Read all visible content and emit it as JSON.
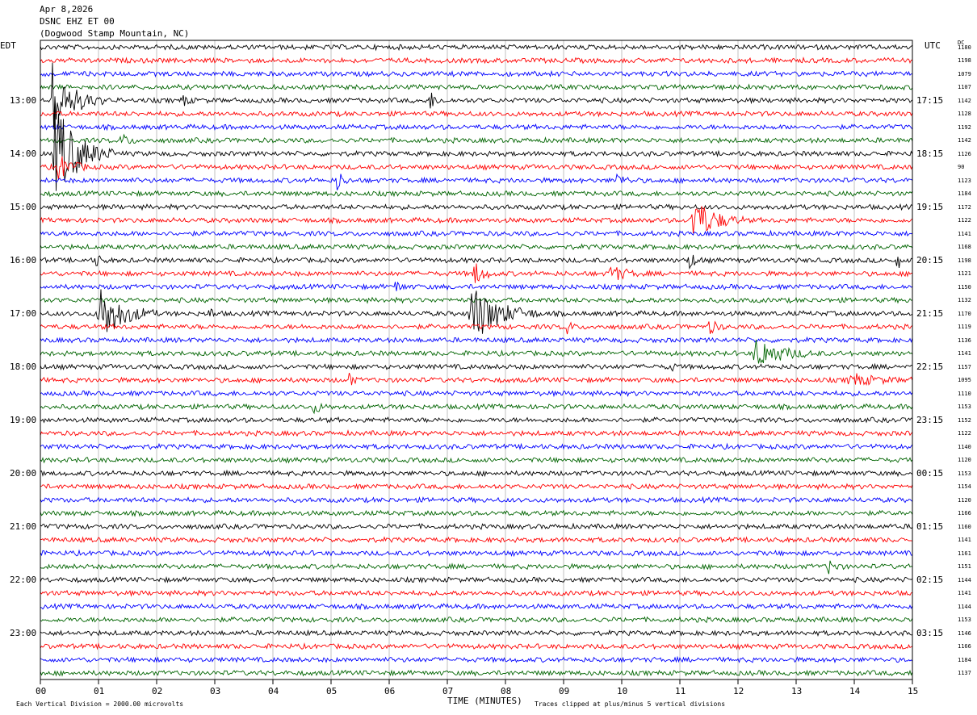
{
  "header": {
    "date": "Apr 8,2026",
    "station": "DSNC EHZ ET 00",
    "location": "(Dogwood Stamp Mountain, NC)"
  },
  "axes": {
    "left_label": "EDT",
    "right_label": "UTC",
    "dc_label": "DC",
    "xlabel": "TIME (MINUTES)"
  },
  "footer": {
    "left_note": "Each Vertical Division = 2000.00 microvolts",
    "right_note": "Traces clipped at plus/minus 5 vertical divisions"
  },
  "chart_data": {
    "type": "line",
    "title": "DSNC EHZ ET 00",
    "xlabel": "TIME (MINUTES)",
    "xlim": [
      0,
      15
    ],
    "x_tick_labels": [
      "00",
      "01",
      "02",
      "03",
      "04",
      "05",
      "06",
      "07",
      "08",
      "09",
      "10",
      "11",
      "12",
      "13",
      "14",
      "15"
    ],
    "left_time_labels": [
      "13:00",
      "14:00",
      "15:00",
      "16:00",
      "17:00",
      "18:00",
      "19:00",
      "20:00",
      "21:00",
      "22:00",
      "23:00"
    ],
    "right_time_labels": [
      "17:15",
      "18:15",
      "19:15",
      "20:15",
      "21:15",
      "22:15",
      "23:15",
      "00:15",
      "01:15",
      "02:15",
      "03:15"
    ],
    "first_labeled_trace_index": 4,
    "traces_per_hour": 4,
    "trace_colors": [
      "#000000",
      "#ff0000",
      "#0000ff",
      "#006400"
    ],
    "dc_offsets": [
      "1180",
      "1198",
      "1079",
      "1107",
      "1142",
      "1128",
      "1192",
      "1142",
      "1126",
      "90",
      "1123",
      "1184",
      "1172",
      "1122",
      "1141",
      "1168",
      "1198",
      "1121",
      "1150",
      "1132",
      "1170",
      "1119",
      "1136",
      "1141",
      "1157",
      "1095",
      "1110",
      "1153",
      "1152",
      "1122",
      "1140",
      "1120",
      "1153",
      "1154",
      "1120",
      "1166",
      "1160",
      "1141",
      "1161",
      "1151",
      "1144",
      "1141",
      "1144",
      "1153",
      "1146",
      "1166",
      "1184",
      "1137"
    ],
    "events": [
      {
        "trace": 4,
        "minute": 0.2,
        "amplitude": 2.8,
        "duration_min": 0.9
      },
      {
        "trace": 8,
        "minute": 0.25,
        "amplitude": 4.0,
        "duration_min": 1.0
      },
      {
        "trace": 9,
        "minute": 0.3,
        "amplitude": 1.0,
        "duration_min": 0.6
      },
      {
        "trace": 4,
        "minute": 2.45,
        "amplitude": 0.6,
        "duration_min": 0.2
      },
      {
        "trace": 4,
        "minute": 6.7,
        "amplitude": 0.7,
        "duration_min": 0.25
      },
      {
        "trace": 7,
        "minute": 1.4,
        "amplitude": 0.5,
        "duration_min": 0.3
      },
      {
        "trace": 10,
        "minute": 5.1,
        "amplitude": 0.8,
        "duration_min": 0.25
      },
      {
        "trace": 10,
        "minute": 9.9,
        "amplitude": 0.5,
        "duration_min": 0.4
      },
      {
        "trace": 13,
        "minute": 11.2,
        "amplitude": 2.0,
        "duration_min": 0.9
      },
      {
        "trace": 16,
        "minute": 0.95,
        "amplitude": 0.6,
        "duration_min": 0.2
      },
      {
        "trace": 16,
        "minute": 11.15,
        "amplitude": 0.8,
        "duration_min": 0.25
      },
      {
        "trace": 16,
        "minute": 14.75,
        "amplitude": 1.5,
        "duration_min": 0.05
      },
      {
        "trace": 17,
        "minute": 7.45,
        "amplitude": 1.0,
        "duration_min": 0.4
      },
      {
        "trace": 17,
        "minute": 9.8,
        "amplitude": 0.7,
        "duration_min": 0.6
      },
      {
        "trace": 18,
        "minute": 6.1,
        "amplitude": 0.4,
        "duration_min": 0.3
      },
      {
        "trace": 20,
        "minute": 1.0,
        "amplitude": 2.4,
        "duration_min": 1.0
      },
      {
        "trace": 20,
        "minute": 7.4,
        "amplitude": 2.4,
        "duration_min": 1.2
      },
      {
        "trace": 20,
        "minute": 2.9,
        "amplitude": 0.5,
        "duration_min": 0.2
      },
      {
        "trace": 21,
        "minute": 9.05,
        "amplitude": 0.6,
        "duration_min": 0.2
      },
      {
        "trace": 21,
        "minute": 11.5,
        "amplitude": 0.6,
        "duration_min": 0.3
      },
      {
        "trace": 23,
        "minute": 12.3,
        "amplitude": 1.2,
        "duration_min": 1.1
      },
      {
        "trace": 24,
        "minute": 10.8,
        "amplitude": 0.5,
        "duration_min": 0.2
      },
      {
        "trace": 25,
        "minute": 5.3,
        "amplitude": 0.8,
        "duration_min": 0.15
      },
      {
        "trace": 25,
        "minute": 13.9,
        "amplitude": 0.5,
        "duration_min": 1.1
      },
      {
        "trace": 27,
        "minute": 4.7,
        "amplitude": 0.5,
        "duration_min": 0.3
      },
      {
        "trace": 39,
        "minute": 13.55,
        "amplitude": 0.6,
        "duration_min": 0.3
      }
    ]
  }
}
